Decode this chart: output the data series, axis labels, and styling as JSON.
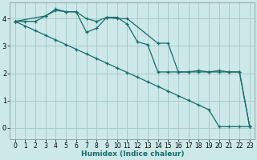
{
  "xlabel": "Humidex (Indice chaleur)",
  "background_color": "#cce8e8",
  "grid_color": "#aacccc",
  "line_color": "#1a6b6b",
  "xlim": [
    -0.5,
    23.5
  ],
  "ylim": [
    -0.4,
    4.6
  ],
  "xticks": [
    0,
    1,
    2,
    3,
    4,
    5,
    6,
    7,
    8,
    9,
    10,
    11,
    12,
    13,
    14,
    15,
    16,
    17,
    18,
    19,
    20,
    21,
    22,
    23
  ],
  "yticks": [
    0,
    1,
    2,
    3,
    4
  ],
  "series": [
    {
      "x": [
        0,
        1,
        2,
        3,
        4,
        5,
        6,
        7,
        8,
        9,
        10,
        11,
        14,
        15,
        16,
        17,
        18,
        19,
        20,
        21,
        22,
        23
      ],
      "y": [
        3.9,
        3.9,
        3.9,
        4.1,
        4.3,
        4.25,
        4.25,
        4.0,
        3.9,
        4.05,
        4.0,
        4.0,
        3.1,
        3.1,
        2.05,
        2.05,
        2.1,
        2.05,
        2.1,
        2.05,
        2.05,
        0.05
      ]
    },
    {
      "x": [
        0,
        3,
        4,
        5,
        6,
        7,
        8,
        9,
        10,
        11,
        12,
        13,
        14,
        15,
        16,
        17,
        18,
        19,
        20,
        21,
        22,
        23
      ],
      "y": [
        3.9,
        4.1,
        4.35,
        4.25,
        4.25,
        3.5,
        3.65,
        4.05,
        4.05,
        3.8,
        3.15,
        3.05,
        2.05,
        2.05,
        2.05,
        2.05,
        2.05,
        2.05,
        2.05,
        2.05,
        2.05,
        0.05
      ]
    },
    {
      "x": [
        0,
        1,
        2,
        3,
        4,
        5,
        6,
        7,
        8,
        9,
        10,
        11,
        12,
        13,
        14,
        15,
        16,
        17,
        18,
        19,
        20,
        21,
        22,
        23
      ],
      "y": [
        3.9,
        3.73,
        3.56,
        3.39,
        3.22,
        3.05,
        2.88,
        2.71,
        2.54,
        2.37,
        2.2,
        2.03,
        1.86,
        1.69,
        1.52,
        1.35,
        1.18,
        1.01,
        0.84,
        0.67,
        0.05,
        0.05,
        0.05,
        0.05
      ]
    }
  ]
}
